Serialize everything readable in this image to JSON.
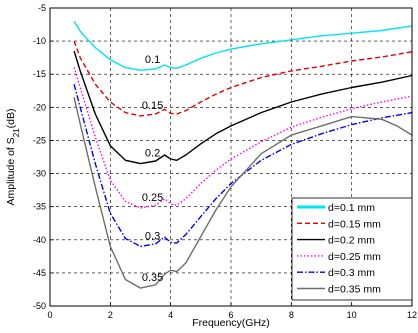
{
  "chart_data": {
    "type": "line",
    "xlabel": "Frequency(GHz)",
    "ylabel_main": "Amplitude of S",
    "ylabel_sub": "21",
    "ylabel_unit": "(dB)",
    "xlim": [
      0,
      12
    ],
    "ylim": [
      -50,
      -5
    ],
    "xticks": [
      0,
      2,
      4,
      6,
      8,
      10,
      12
    ],
    "yticks": [
      -50,
      -45,
      -40,
      -35,
      -30,
      -25,
      -20,
      -15,
      -10,
      -5
    ],
    "grid": true,
    "legend_position": "lower-right",
    "series": [
      {
        "name": "d=0.1 mm",
        "color": "#00e5ee",
        "dash": "solid",
        "label": "0.1",
        "x": [
          0.8,
          1.0,
          1.5,
          2.0,
          2.5,
          3.0,
          3.5,
          3.8,
          4.0,
          4.2,
          4.5,
          5.0,
          5.5,
          6.0,
          7.0,
          8.0,
          9.0,
          10.0,
          11.0,
          12.0
        ],
        "y": [
          -7,
          -8.5,
          -11,
          -12.8,
          -14.0,
          -14.4,
          -14.2,
          -13.6,
          -14.0,
          -14.1,
          -13.6,
          -12.6,
          -11.8,
          -11.2,
          -10.4,
          -9.8,
          -9.2,
          -8.8,
          -8.4,
          -7.7
        ]
      },
      {
        "name": "d=0.15 mm",
        "color": "#e00000",
        "dash": "dashed",
        "label": "0.15",
        "x": [
          0.8,
          1.0,
          1.5,
          2.0,
          2.5,
          3.0,
          3.5,
          3.8,
          4.0,
          4.2,
          4.5,
          5.0,
          5.5,
          6.0,
          7.0,
          8.0,
          9.0,
          10.0,
          11.0,
          12.0
        ],
        "y": [
          -10,
          -12.5,
          -16.5,
          -19.2,
          -20.8,
          -21.3,
          -21.0,
          -20.3,
          -20.9,
          -21.0,
          -20.5,
          -19.2,
          -18.0,
          -17.0,
          -15.5,
          -14.5,
          -13.8,
          -13.0,
          -12.4,
          -11.6
        ]
      },
      {
        "name": "d=0.2 mm",
        "color": "#000000",
        "dash": "solid",
        "label": "0.2",
        "x": [
          0.8,
          1.0,
          1.5,
          2.0,
          2.5,
          3.0,
          3.5,
          3.8,
          4.0,
          4.2,
          4.5,
          5.0,
          5.5,
          6.0,
          7.0,
          8.0,
          9.0,
          10.0,
          11.0,
          12.0
        ],
        "y": [
          -11.5,
          -14.5,
          -21,
          -25.8,
          -28.0,
          -28.5,
          -28.1,
          -27.2,
          -27.8,
          -28.0,
          -27.2,
          -25.5,
          -24.0,
          -22.8,
          -20.8,
          -19.2,
          -18.0,
          -17.0,
          -16.2,
          -15.2
        ]
      },
      {
        "name": "d=0.25 mm",
        "color": "#ff00ff",
        "dash": "dotted",
        "label": "0.25",
        "x": [
          0.8,
          1.0,
          1.5,
          2.0,
          2.5,
          3.0,
          3.5,
          3.8,
          4.0,
          4.2,
          4.5,
          5.0,
          5.5,
          6.0,
          7.0,
          8.0,
          9.0,
          10.0,
          11.0,
          12.0
        ],
        "y": [
          -14,
          -17,
          -24.5,
          -31,
          -34.2,
          -35.2,
          -34.8,
          -33.8,
          -34.6,
          -34.8,
          -33.8,
          -31.5,
          -29.5,
          -27.8,
          -25.2,
          -23.0,
          -21.5,
          -20.2,
          -19.2,
          -18.3
        ]
      },
      {
        "name": "d=0.3 mm",
        "color": "#0000ff",
        "dash": "dashdot",
        "label": "0.3",
        "x": [
          0.8,
          1.0,
          1.5,
          2.0,
          2.5,
          3.0,
          3.5,
          3.8,
          4.0,
          4.2,
          4.5,
          5.0,
          5.5,
          6.0,
          7.0,
          8.0,
          9.0,
          10.0,
          11.0,
          12.0
        ],
        "y": [
          -16.5,
          -20,
          -28.5,
          -36,
          -39.8,
          -41.0,
          -40.6,
          -39.6,
          -40.4,
          -40.5,
          -39.2,
          -36.5,
          -33.8,
          -31.5,
          -28.0,
          -25.6,
          -24.0,
          -22.6,
          -21.6,
          -20.8
        ]
      },
      {
        "name": "d=0.35 mm",
        "color": "#6e6e6e",
        "dash": "solid",
        "label": "0.35",
        "x": [
          0.8,
          1.0,
          1.5,
          2.0,
          2.5,
          3.0,
          3.5,
          3.8,
          4.0,
          4.2,
          4.5,
          5.0,
          5.5,
          6.0,
          7.0,
          8.0,
          9.0,
          10.0,
          11.0,
          11.5,
          12.0
        ],
        "y": [
          -18.5,
          -22.5,
          -32,
          -41,
          -46.0,
          -47.3,
          -46.8,
          -45.2,
          -44.6,
          -44.8,
          -43.5,
          -39.5,
          -35.5,
          -32.0,
          -27.0,
          -24.2,
          -22.8,
          -21.4,
          -21.8,
          -22.8,
          -24.2
        ]
      }
    ]
  }
}
